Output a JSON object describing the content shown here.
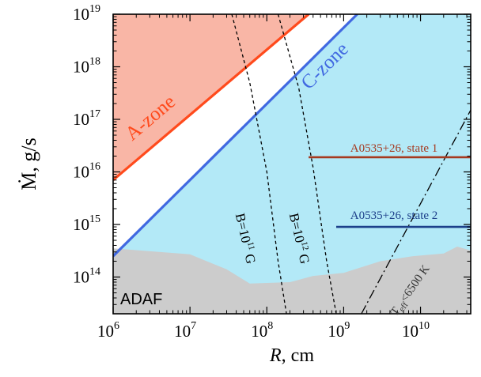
{
  "chart_data": {
    "type": "area",
    "xlabel": "R, cm",
    "xlabel_var": "R",
    "xlabel_unit": ", cm",
    "ylabel": "Ṁ, g/s",
    "xscale": "log",
    "yscale": "log",
    "xlim": [
      1000000.0,
      45000000000.0
    ],
    "ylim": [
      20000000000000.0,
      1e+19
    ],
    "x_ticks": [
      {
        "exp": "6",
        "value": 1000000.0
      },
      {
        "exp": "7",
        "value": 10000000.0
      },
      {
        "exp": "8",
        "value": 100000000.0
      },
      {
        "exp": "9",
        "value": 1000000000.0
      },
      {
        "exp": "10",
        "value": 10000000000.0
      }
    ],
    "y_ticks": [
      {
        "exp": "14",
        "value": 100000000000000.0
      },
      {
        "exp": "15",
        "value": 1000000000000000.0
      },
      {
        "exp": "16",
        "value": 1e+16
      },
      {
        "exp": "17",
        "value": 1e+17
      },
      {
        "exp": "18",
        "value": 1e+18
      },
      {
        "exp": "19",
        "value": 1e+19
      }
    ],
    "tick_base": "10",
    "regions": {
      "a_zone": {
        "label": "A-zone",
        "color": "#f9b6a6"
      },
      "c_zone": {
        "label": "C-zone",
        "color": "#b3e9f7"
      },
      "adaf": {
        "label": "ADAF",
        "color": "#cccccc"
      }
    },
    "boundary_lines": [
      {
        "name": "A-zone boundary",
        "color": "#ff4a1c",
        "points": [
          [
            1000000.0,
            7000000000000000.0
          ],
          [
            350000000.0,
            1e+19
          ]
        ]
      },
      {
        "name": "C-zone boundary",
        "color": "#4169e1",
        "points": [
          [
            1000000.0,
            250000000000000.0
          ],
          [
            1500000000.0,
            1e+19
          ]
        ]
      }
    ],
    "adaf_boundary": [
      [
        1000000.0,
        350000000000000.0
      ],
      [
        10000000.0,
        270000000000000.0
      ],
      [
        30000000.0,
        140000000000000.0
      ],
      [
        60000000.0,
        75000000000000.0
      ],
      [
        200000000.0,
        80000000000000.0
      ],
      [
        400000000.0,
        105000000000000.0
      ],
      [
        1000000000.0,
        120000000000000.0
      ],
      [
        3000000000.0,
        200000000000000.0
      ],
      [
        8000000000.0,
        250000000000000.0
      ],
      [
        20000000000.0,
        280000000000000.0
      ],
      [
        30000000000.0,
        380000000000000.0
      ],
      [
        45000000000.0,
        320000000000000.0
      ]
    ],
    "magnetic_lines": [
      {
        "label_parts": {
          "pre": "B=10",
          "exp": "11",
          "post": " G"
        },
        "points": [
          [
            35000000.0,
            1e+19
          ],
          [
            60000000.0,
            5e+17
          ],
          [
            100000000.0,
            1e+16
          ],
          [
            140000000.0,
            200000000000000.0
          ],
          [
            180000000.0,
            20000000000000.0
          ]
        ]
      },
      {
        "label_parts": {
          "pre": "B=10",
          "exp": "12",
          "post": " G"
        },
        "points": [
          [
            140000000.0,
            1e+19
          ],
          [
            260000000.0,
            4e+17
          ],
          [
            400000000.0,
            1.2e+16
          ],
          [
            600000000.0,
            200000000000000.0
          ],
          [
            800000000.0,
            20000000000000.0
          ]
        ]
      }
    ],
    "teff_line": {
      "label_parts": {
        "pre": "T",
        "sub": "eff",
        "post": "<6500 K"
      },
      "points": [
        [
          1700000000.0,
          20000000000000.0
        ],
        [
          45000000000.0,
          1.5e+17
        ]
      ]
    },
    "states": [
      {
        "label": "A0535+26, state 1",
        "color": "#a6391f",
        "y": 1.9e+16,
        "x_start": 350000000.0,
        "x_end": 45000000000.0
      },
      {
        "label": "A0535+26, state 2",
        "color": "#1c3f8a",
        "y": 900000000000000.0,
        "x_start": 800000000.0,
        "x_end": 45000000000.0
      }
    ]
  }
}
